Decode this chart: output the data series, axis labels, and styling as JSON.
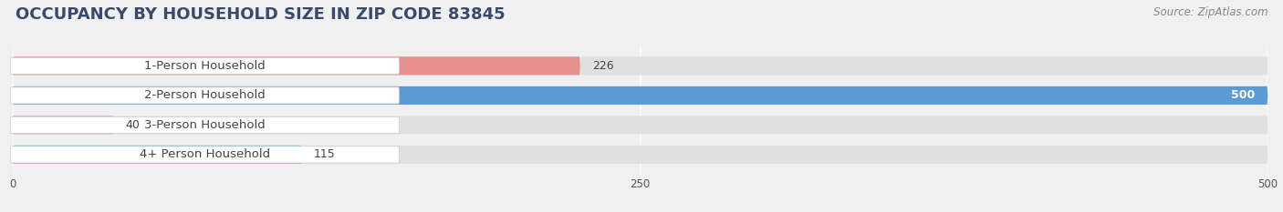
{
  "title": "OCCUPANCY BY HOUSEHOLD SIZE IN ZIP CODE 83845",
  "source": "Source: ZipAtlas.com",
  "categories": [
    "1-Person Household",
    "2-Person Household",
    "3-Person Household",
    "4+ Person Household"
  ],
  "values": [
    226,
    500,
    40,
    115
  ],
  "bar_colors": [
    "#E8908E",
    "#5B9BD5",
    "#C9A8D4",
    "#5BBFC8"
  ],
  "xlim": [
    0,
    500
  ],
  "xticks": [
    0,
    250,
    500
  ],
  "bg_color": "#f0f0f0",
  "bar_bg_color": "#e0e0e0",
  "title_fontsize": 13,
  "title_color": "#3a4a6b",
  "source_fontsize": 8.5,
  "label_fontsize": 9.5,
  "value_fontsize": 9,
  "bar_height": 0.62,
  "figsize": [
    14.06,
    2.33
  ],
  "dpi": 100
}
